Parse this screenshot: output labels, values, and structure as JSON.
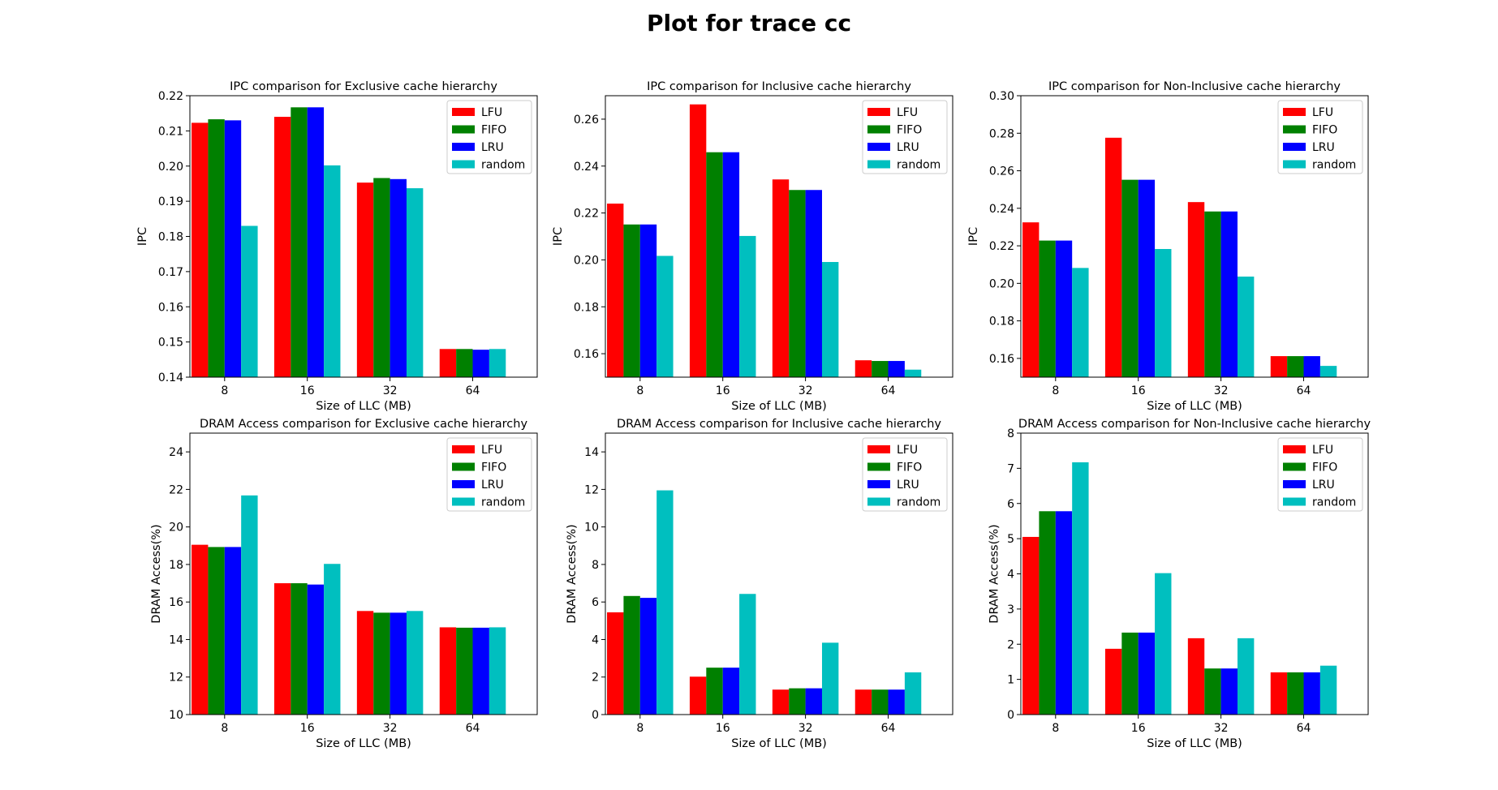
{
  "suptitle": "Plot for trace cc",
  "colors": {
    "LFU": "#ff0000",
    "FIFO": "#008000",
    "LRU": "#0000ff",
    "random": "#00bfbf"
  },
  "chart_data": [
    {
      "type": "bar",
      "title": "IPC comparison for Exclusive cache hierarchy",
      "xlabel": "Size of LLC (MB)",
      "ylabel": "IPC",
      "categories": [
        "8",
        "16",
        "32",
        "64"
      ],
      "ylim": [
        0.14,
        0.22
      ],
      "yticks": [
        0.14,
        0.15,
        0.16,
        0.17,
        0.18,
        0.19,
        0.2,
        0.21,
        0.22
      ],
      "ytick_labels": [
        "0.14",
        "0.15",
        "0.16",
        "0.17",
        "0.18",
        "0.19",
        "0.20",
        "0.21",
        "0.22"
      ],
      "legend_position": "top-right",
      "series": [
        {
          "name": "LFU",
          "values": [
            0.2123,
            0.214,
            0.1953,
            0.148
          ]
        },
        {
          "name": "FIFO",
          "values": [
            0.2133,
            0.2167,
            0.1966,
            0.148
          ]
        },
        {
          "name": "LRU",
          "values": [
            0.213,
            0.2167,
            0.1963,
            0.1478
          ]
        },
        {
          "name": "random",
          "values": [
            0.183,
            0.2002,
            0.1937,
            0.148
          ]
        }
      ]
    },
    {
      "type": "bar",
      "title": "IPC comparison for Inclusive cache hierarchy",
      "xlabel": "Size of LLC (MB)",
      "ylabel": "IPC",
      "categories": [
        "8",
        "16",
        "32",
        "64"
      ],
      "ylim": [
        0.15,
        0.27
      ],
      "yticks": [
        0.16,
        0.18,
        0.2,
        0.22,
        0.24,
        0.26
      ],
      "ytick_labels": [
        "0.16",
        "0.18",
        "0.20",
        "0.22",
        "0.24",
        "0.26"
      ],
      "legend_position": "top-right",
      "series": [
        {
          "name": "LFU",
          "values": [
            0.224,
            0.2663,
            0.2343,
            0.1572
          ]
        },
        {
          "name": "FIFO",
          "values": [
            0.2151,
            0.2459,
            0.2298,
            0.1569
          ]
        },
        {
          "name": "LRU",
          "values": [
            0.2151,
            0.2459,
            0.2298,
            0.1569
          ]
        },
        {
          "name": "random",
          "values": [
            0.2017,
            0.2102,
            0.1991,
            0.1532
          ]
        }
      ]
    },
    {
      "type": "bar",
      "title": "IPC comparison for Non-Inclusive cache hierarchy",
      "xlabel": "Size of LLC (MB)",
      "ylabel": "IPC",
      "categories": [
        "8",
        "16",
        "32",
        "64"
      ],
      "ylim": [
        0.15,
        0.3
      ],
      "yticks": [
        0.16,
        0.18,
        0.2,
        0.22,
        0.24,
        0.26,
        0.28,
        0.3
      ],
      "ytick_labels": [
        "0.16",
        "0.18",
        "0.20",
        "0.22",
        "0.24",
        "0.26",
        "0.28",
        "0.30"
      ],
      "legend_position": "top-right",
      "series": [
        {
          "name": "LFU",
          "values": [
            0.2325,
            0.2776,
            0.2433,
            0.1612
          ]
        },
        {
          "name": "FIFO",
          "values": [
            0.2228,
            0.2552,
            0.2383,
            0.1612
          ]
        },
        {
          "name": "LRU",
          "values": [
            0.2228,
            0.2552,
            0.2383,
            0.1612
          ]
        },
        {
          "name": "random",
          "values": [
            0.2082,
            0.2183,
            0.2036,
            0.156
          ]
        }
      ]
    },
    {
      "type": "bar",
      "title": "DRAM Access comparison for Exclusive cache hierarchy",
      "xlabel": "Size of LLC (MB)",
      "ylabel": "DRAM Access(%)",
      "categories": [
        "8",
        "16",
        "32",
        "64"
      ],
      "ylim": [
        10,
        25
      ],
      "yticks": [
        10,
        12,
        14,
        16,
        18,
        20,
        22,
        24
      ],
      "ytick_labels": [
        "10",
        "12",
        "14",
        "16",
        "18",
        "20",
        "22",
        "24"
      ],
      "legend_position": "top-right",
      "series": [
        {
          "name": "LFU",
          "values": [
            19.05,
            17.0,
            15.52,
            14.65
          ]
        },
        {
          "name": "FIFO",
          "values": [
            18.93,
            17.0,
            15.43,
            14.63
          ]
        },
        {
          "name": "LRU",
          "values": [
            18.93,
            16.93,
            15.43,
            14.63
          ]
        },
        {
          "name": "random",
          "values": [
            21.68,
            18.03,
            15.52,
            14.65
          ]
        }
      ]
    },
    {
      "type": "bar",
      "title": "DRAM Access comparison for Inclusive cache hierarchy",
      "xlabel": "Size of LLC (MB)",
      "ylabel": "DRAM Access(%)",
      "categories": [
        "8",
        "16",
        "32",
        "64"
      ],
      "ylim": [
        0,
        15
      ],
      "yticks": [
        0,
        2,
        4,
        6,
        8,
        10,
        12,
        14
      ],
      "ytick_labels": [
        "0",
        "2",
        "4",
        "6",
        "8",
        "10",
        "12",
        "14"
      ],
      "legend_position": "top-right",
      "series": [
        {
          "name": "LFU",
          "values": [
            5.45,
            2.02,
            1.33,
            1.33
          ]
        },
        {
          "name": "FIFO",
          "values": [
            6.32,
            2.5,
            1.4,
            1.33
          ]
        },
        {
          "name": "LRU",
          "values": [
            6.22,
            2.5,
            1.4,
            1.33
          ]
        },
        {
          "name": "random",
          "values": [
            11.95,
            6.43,
            3.83,
            2.25
          ]
        }
      ]
    },
    {
      "type": "bar",
      "title": "DRAM Access comparison for Non-Inclusive cache hierarchy",
      "xlabel": "Size of LLC (MB)",
      "ylabel": "DRAM Access(%)",
      "categories": [
        "8",
        "16",
        "32",
        "64"
      ],
      "ylim": [
        0,
        8
      ],
      "yticks": [
        0,
        1,
        2,
        3,
        4,
        5,
        6,
        7,
        8
      ],
      "ytick_labels": [
        "0",
        "1",
        "2",
        "3",
        "4",
        "5",
        "6",
        "7",
        "8"
      ],
      "legend_position": "top-right",
      "series": [
        {
          "name": "LFU",
          "values": [
            5.05,
            1.87,
            2.17,
            1.2
          ]
        },
        {
          "name": "FIFO",
          "values": [
            5.78,
            2.33,
            1.31,
            1.2
          ]
        },
        {
          "name": "LRU",
          "values": [
            5.78,
            2.33,
            1.31,
            1.2
          ]
        },
        {
          "name": "random",
          "values": [
            7.17,
            4.02,
            2.17,
            1.39
          ]
        }
      ]
    }
  ]
}
